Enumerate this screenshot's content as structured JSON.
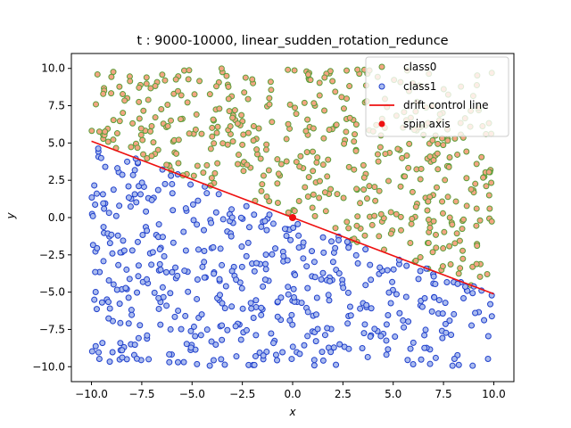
{
  "chart_data": {
    "type": "scatter",
    "title": "t : 9000-10000, linear_sudden_rotation_redunce",
    "xlabel": "x",
    "ylabel": "y",
    "xlim": [
      -11.0,
      11.0
    ],
    "ylim": [
      -11.0,
      11.0
    ],
    "xticks": [
      -10.0,
      -7.5,
      -5.0,
      -2.5,
      0.0,
      2.5,
      5.0,
      7.5,
      10.0
    ],
    "yticks": [
      -10.0,
      -7.5,
      -5.0,
      -2.5,
      0.0,
      2.5,
      5.0,
      7.5,
      10.0
    ],
    "xtick_labels": [
      "−10.0",
      "−7.5",
      "−5.0",
      "−2.5",
      "0.0",
      "2.5",
      "5.0",
      "7.5",
      "10.0"
    ],
    "ytick_labels": [
      "−10.0",
      "−7.5",
      "−5.0",
      "−2.5",
      "0.0",
      "2.5",
      "5.0",
      "7.5",
      "10.0"
    ],
    "grid": false,
    "legend_position": "top-right",
    "series": [
      {
        "name": "class0",
        "kind": "points",
        "marker_fill": "#f4a582",
        "marker_edge": "#5a9e3a",
        "rule": "uniform random points in [-10,10]x[-10,10] lying above the drift control line y = -0.5124x + 0.0",
        "approx_count": 500
      },
      {
        "name": "class1",
        "kind": "points",
        "marker_fill": "#aabbee",
        "marker_edge": "#1f3fcc",
        "rule": "uniform random points in [-10,10]x[-10,10] lying below the drift control line y = -0.5124x + 0.0",
        "approx_count": 500
      },
      {
        "name": "drift control line",
        "kind": "line",
        "color": "#ee1111",
        "x": [
          -10.0,
          10.0
        ],
        "y": [
          5.12,
          -5.12
        ]
      },
      {
        "name": "spin axis",
        "kind": "point",
        "color": "#ee1111",
        "x": 0.0,
        "y": 0.0
      }
    ]
  }
}
